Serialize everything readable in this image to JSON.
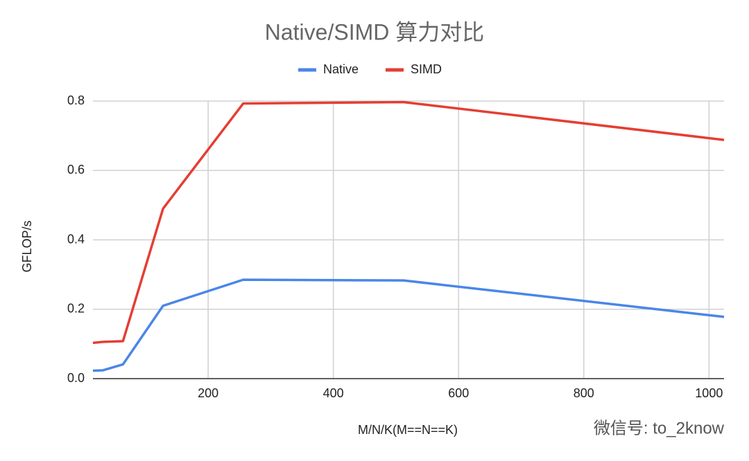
{
  "chart_data": {
    "type": "line",
    "title": "Native/SIMD 算力对比",
    "x_label": "M/N/K(M==N==K)",
    "y_label": "GFLOP/s",
    "x": [
      16,
      32,
      64,
      128,
      256,
      512,
      1024
    ],
    "series": [
      {
        "name": "Native",
        "color": "#4a86e8",
        "values": [
          0.023,
          0.024,
          0.041,
          0.21,
          0.285,
          0.283,
          0.178
        ]
      },
      {
        "name": "SIMD",
        "color": "#e53e32",
        "values": [
          0.103,
          0.106,
          0.108,
          0.49,
          0.793,
          0.797,
          0.688
        ]
      }
    ],
    "xlim": [
      16,
      1024
    ],
    "xticks": [
      200,
      400,
      600,
      800,
      1000
    ],
    "ylim": [
      0,
      0.8
    ],
    "yticks": [
      {
        "value": 0,
        "label": "0.0"
      },
      0.2,
      0.4,
      0.6,
      0.8
    ],
    "grid": true,
    "legend": "top",
    "watermark": "微信号: to_2know"
  }
}
